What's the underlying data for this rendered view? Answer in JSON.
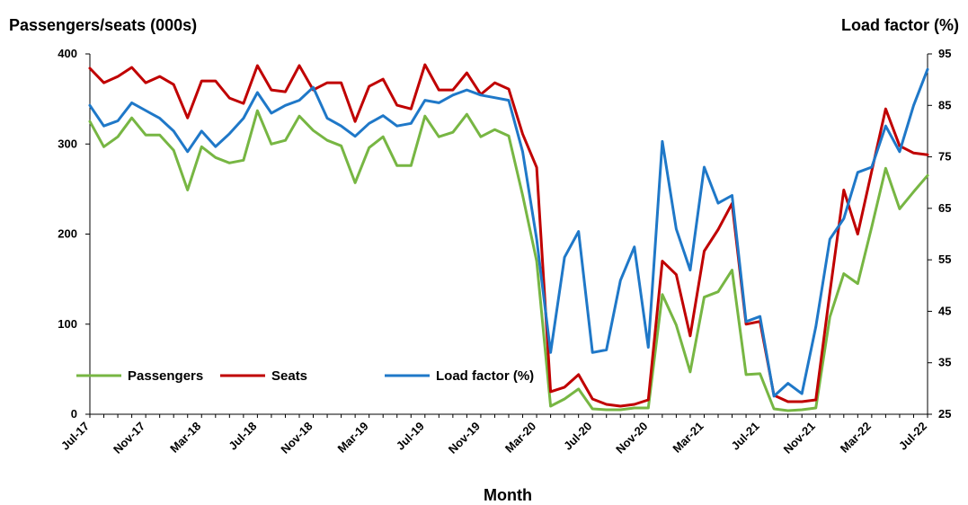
{
  "chart_data": {
    "type": "line",
    "title": "",
    "xlabel": "Month",
    "ylabel": "Passengers/seats (000s)",
    "y2label": "Load factor (%)",
    "ylim": [
      0,
      400
    ],
    "y2lim": [
      25,
      95
    ],
    "yticks": [
      0,
      100,
      200,
      300,
      400
    ],
    "y2ticks": [
      25,
      35,
      45,
      55,
      65,
      75,
      85,
      95
    ],
    "x_tick_labels": [
      "Jul-17",
      "Nov-17",
      "Mar-18",
      "Jul-18",
      "Nov-18",
      "Mar-19",
      "Jul-19",
      "Nov-19",
      "Mar-20",
      "Jul-20",
      "Nov-20",
      "Mar-21",
      "Jul-21",
      "Nov-21",
      "Mar-22",
      "Jul-22"
    ],
    "x_tick_every": 4,
    "grid": false,
    "legend_position": "bottom-left",
    "series": [
      {
        "name": "Passengers",
        "axis": "left",
        "color": "#77b643",
        "values": [
          325,
          297,
          308,
          329,
          310,
          310,
          293,
          249,
          297,
          285,
          279,
          282,
          337,
          300,
          304,
          331,
          315,
          304,
          298,
          257,
          296,
          308,
          276,
          276,
          331,
          308,
          313,
          333,
          308,
          316,
          309,
          243,
          170,
          9,
          17,
          28,
          6,
          5,
          5,
          7,
          7,
          133,
          99,
          47,
          130,
          136,
          160,
          44,
          45,
          6,
          4,
          5,
          7,
          108,
          156,
          145,
          208,
          273,
          228,
          247,
          265
        ]
      },
      {
        "name": "Seats",
        "axis": "left",
        "color": "#c00000",
        "values": [
          384,
          368,
          375,
          385,
          368,
          375,
          366,
          329,
          370,
          370,
          351,
          345,
          387,
          360,
          358,
          387,
          360,
          368,
          368,
          325,
          364,
          372,
          343,
          339,
          388,
          360,
          360,
          379,
          355,
          368,
          361,
          311,
          274,
          25,
          30,
          44,
          17,
          11,
          9,
          11,
          16,
          170,
          155,
          87,
          181,
          205,
          234,
          100,
          103,
          21,
          14,
          14,
          16,
          135,
          249,
          200,
          270,
          339,
          298,
          290,
          288
        ]
      },
      {
        "name": "Load factor (%)",
        "axis": "right",
        "color": "#1f78c8",
        "values": [
          85,
          81,
          82,
          85.5,
          84,
          82.5,
          80,
          76,
          80,
          77,
          79.5,
          82.5,
          87.5,
          83.5,
          85,
          86,
          88.5,
          82.5,
          81,
          79,
          81.5,
          83,
          81,
          81.5,
          86,
          85.5,
          87,
          88,
          87,
          86.5,
          86,
          76,
          59,
          37,
          55.5,
          60.5,
          37,
          37.5,
          51,
          57.5,
          38,
          78,
          61,
          53,
          73,
          66,
          67.5,
          43,
          44,
          28.5,
          31,
          29,
          42,
          59,
          63,
          72,
          73,
          81,
          76,
          85,
          92
        ]
      }
    ]
  }
}
